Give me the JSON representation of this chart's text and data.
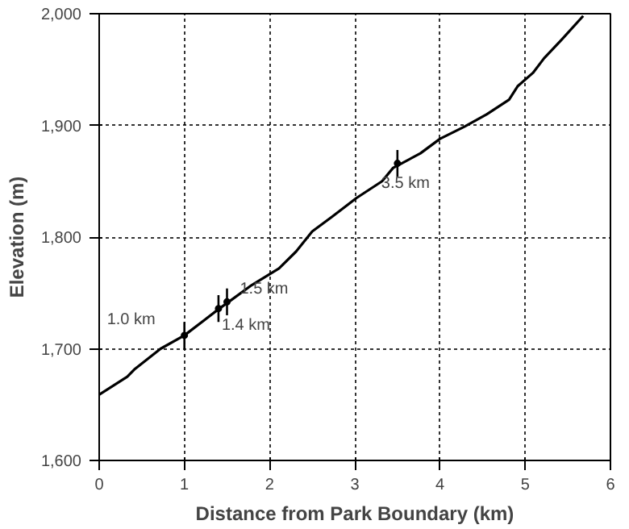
{
  "chart_data": {
    "type": "line",
    "xlabel": "Distance from Park Boundary (km)",
    "ylabel": "Elevation (m)",
    "x": [
      0,
      0.33,
      0.42,
      0.72,
      1.0,
      1.41,
      1.52,
      1.79,
      2.11,
      2.31,
      2.5,
      2.73,
      3.02,
      3.32,
      3.45,
      3.55,
      3.77,
      4.0,
      4.29,
      4.55,
      4.81,
      4.91,
      5.09,
      5.22,
      5.43,
      5.68
    ],
    "series": [
      {
        "color": "#000000",
        "values": [
          1659,
          1675,
          1682,
          1700,
          1712,
          1736,
          1742,
          1757,
          1772,
          1787,
          1805,
          1818,
          1835,
          1850,
          1862,
          1866,
          1875,
          1888,
          1899,
          1910,
          1923,
          1935,
          1947,
          1960,
          1977,
          1998
        ]
      },
      {
        "type": "scatter",
        "color": "#000000",
        "marker": "circle",
        "x": [
          1.0,
          1.4,
          1.5,
          3.5
        ],
        "values": [
          1712,
          1736,
          1742,
          1866
        ],
        "errors": [
          12,
          12,
          12,
          12
        ]
      }
    ],
    "xlim": [
      0,
      6
    ],
    "ylim": [
      1600,
      2000
    ],
    "xticks": [
      0,
      1,
      2,
      3,
      4,
      5,
      6
    ],
    "yticks": [
      {
        "value": 1600,
        "label": "1,600"
      },
      {
        "value": 1700,
        "label": "1,700"
      },
      {
        "value": 1800,
        "label": "1,800"
      },
      {
        "value": 1900,
        "label": "1,900"
      },
      {
        "value": 2000,
        "label": "2,000"
      }
    ],
    "grid": true,
    "line_style": "solid",
    "marker": "none",
    "annotations": [
      {
        "text": "1.0 km",
        "x": 1.0,
        "y": 1712
      },
      {
        "text": "1.4 km",
        "x": 1.4,
        "y": 1736
      },
      {
        "text": "1.5 km",
        "x": 1.5,
        "y": 1742
      },
      {
        "text": "3.5 km",
        "x": 3.5,
        "y": 1866
      }
    ]
  }
}
